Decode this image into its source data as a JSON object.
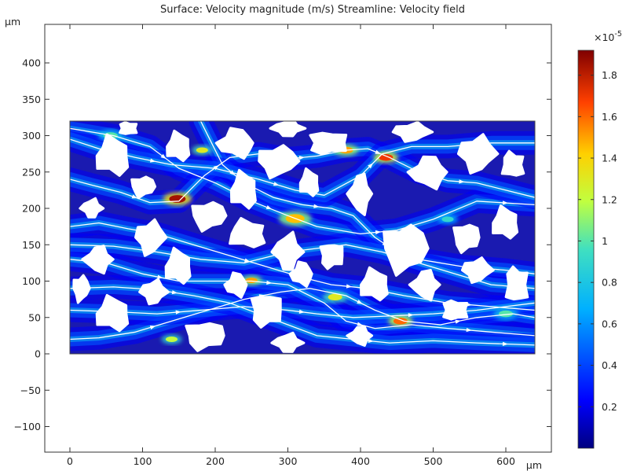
{
  "chart_data": {
    "type": "heatmap",
    "title": "Surface: Velocity magnitude (m/s)  Streamline: Velocity field",
    "xlabel": "µm",
    "ylabel": "µm",
    "xlim": [
      -35,
      670
    ],
    "ylim": [
      -135,
      460
    ],
    "x_ticks": [
      0,
      100,
      200,
      300,
      400,
      500,
      600
    ],
    "y_ticks": [
      -100,
      -50,
      0,
      50,
      100,
      150,
      200,
      250,
      300,
      350,
      400
    ],
    "domain": {
      "x": [
        0,
        640
      ],
      "y": [
        0,
        320
      ]
    },
    "colorbar": {
      "exponent_label": "×10",
      "exponent_power": "-5",
      "range": [
        0,
        1.92
      ],
      "ticks": [
        "0.2",
        "0.4",
        "0.6",
        "0.8",
        "1",
        "1.2",
        "1.4",
        "1.6",
        "1.8"
      ],
      "colormap": "rainbow"
    },
    "channels": [
      [
        [
          0,
          310
        ],
        [
          60,
          300
        ],
        [
          110,
          285
        ],
        [
          150,
          255
        ],
        [
          200,
          235
        ],
        [
          250,
          210
        ],
        [
          300,
          190
        ],
        [
          340,
          175
        ],
        [
          400,
          165
        ],
        [
          450,
          170
        ],
        [
          500,
          185
        ],
        [
          560,
          210
        ],
        [
          640,
          205
        ]
      ],
      [
        [
          0,
          175
        ],
        [
          40,
          180
        ],
        [
          80,
          172
        ],
        [
          120,
          165
        ],
        [
          170,
          150
        ],
        [
          220,
          135
        ],
        [
          270,
          120
        ],
        [
          320,
          105
        ],
        [
          360,
          95
        ],
        [
          410,
          90
        ],
        [
          460,
          80
        ],
        [
          520,
          70
        ],
        [
          580,
          65
        ],
        [
          640,
          60
        ]
      ],
      [
        [
          0,
          20
        ],
        [
          40,
          22
        ],
        [
          90,
          30
        ],
        [
          140,
          45
        ],
        [
          190,
          60
        ],
        [
          240,
          75
        ],
        [
          290,
          85
        ],
        [
          330,
          90
        ],
        [
          380,
          80
        ],
        [
          420,
          60
        ],
        [
          460,
          45
        ],
        [
          510,
          40
        ],
        [
          560,
          50
        ],
        [
          610,
          55
        ],
        [
          640,
          50
        ]
      ],
      [
        [
          0,
          240
        ],
        [
          30,
          232
        ],
        [
          70,
          222
        ],
        [
          110,
          208
        ],
        [
          150,
          210
        ],
        [
          185,
          245
        ],
        [
          220,
          270
        ],
        [
          260,
          275
        ],
        [
          300,
          268
        ],
        [
          340,
          272
        ],
        [
          380,
          280
        ],
        [
          410,
          282
        ],
        [
          440,
          270
        ],
        [
          480,
          250
        ],
        [
          520,
          238
        ],
        [
          560,
          235
        ],
        [
          600,
          225
        ],
        [
          640,
          215
        ]
      ],
      [
        [
          0,
          130
        ],
        [
          50,
          125
        ],
        [
          100,
          110
        ],
        [
          150,
          100
        ],
        [
          200,
          100
        ],
        [
          250,
          100
        ],
        [
          300,
          95
        ],
        [
          350,
          70
        ],
        [
          380,
          45
        ],
        [
          420,
          35
        ],
        [
          470,
          40
        ],
        [
          520,
          35
        ],
        [
          580,
          30
        ],
        [
          640,
          25
        ]
      ],
      [
        [
          180,
          320
        ],
        [
          195,
          290
        ],
        [
          210,
          260
        ],
        [
          240,
          235
        ],
        [
          280,
          215
        ],
        [
          320,
          205
        ],
        [
          360,
          200
        ],
        [
          390,
          190
        ],
        [
          420,
          160
        ],
        [
          450,
          140
        ],
        [
          480,
          130
        ],
        [
          540,
          120
        ],
        [
          600,
          115
        ],
        [
          640,
          110
        ]
      ],
      [
        [
          0,
          60
        ],
        [
          60,
          58
        ],
        [
          120,
          55
        ],
        [
          180,
          60
        ],
        [
          240,
          65
        ],
        [
          300,
          60
        ],
        [
          340,
          55
        ],
        [
          390,
          50
        ],
        [
          440,
          52
        ],
        [
          500,
          55
        ],
        [
          560,
          60
        ],
        [
          640,
          70
        ]
      ],
      [
        [
          0,
          295
        ],
        [
          40,
          282
        ],
        [
          90,
          270
        ],
        [
          140,
          260
        ],
        [
          200,
          255
        ],
        [
          260,
          240
        ],
        [
          310,
          225
        ],
        [
          350,
          218
        ],
        [
          400,
          245
        ],
        [
          430,
          275
        ],
        [
          470,
          285
        ],
        [
          520,
          285
        ],
        [
          580,
          290
        ],
        [
          640,
          290
        ]
      ],
      [
        [
          0,
          150
        ],
        [
          60,
          148
        ],
        [
          120,
          140
        ],
        [
          180,
          130
        ],
        [
          240,
          125
        ],
        [
          300,
          140
        ],
        [
          340,
          145
        ],
        [
          380,
          150
        ],
        [
          430,
          140
        ],
        [
          480,
          125
        ],
        [
          530,
          110
        ],
        [
          580,
          95
        ],
        [
          640,
          90
        ]
      ],
      [
        [
          0,
          90
        ],
        [
          60,
          92
        ],
        [
          120,
          88
        ],
        [
          170,
          80
        ],
        [
          220,
          70
        ],
        [
          260,
          55
        ],
        [
          300,
          40
        ],
        [
          340,
          25
        ],
        [
          390,
          20
        ],
        [
          440,
          15
        ],
        [
          500,
          18
        ],
        [
          560,
          15
        ],
        [
          640,
          12
        ]
      ]
    ],
    "hotspots": [
      {
        "x": 148,
        "y": 213,
        "v": 1.85,
        "r": 14
      },
      {
        "x": 182,
        "y": 280,
        "v": 1.3,
        "r": 10
      },
      {
        "x": 310,
        "y": 186,
        "v": 1.45,
        "r": 16
      },
      {
        "x": 380,
        "y": 280,
        "v": 1.5,
        "r": 12
      },
      {
        "x": 435,
        "y": 270,
        "v": 1.7,
        "r": 12
      },
      {
        "x": 250,
        "y": 101,
        "v": 1.5,
        "r": 10
      },
      {
        "x": 365,
        "y": 78,
        "v": 1.3,
        "r": 12
      },
      {
        "x": 455,
        "y": 45,
        "v": 1.6,
        "r": 12
      },
      {
        "x": 56,
        "y": 300,
        "v": 1.0,
        "r": 12
      },
      {
        "x": 140,
        "y": 20,
        "v": 1.2,
        "r": 10
      },
      {
        "x": 600,
        "y": 55,
        "v": 1.0,
        "r": 12
      },
      {
        "x": 520,
        "y": 185,
        "v": 0.9,
        "r": 10
      }
    ],
    "grains": [
      [
        60,
        272,
        28,
        30
      ],
      [
        100,
        230,
        18,
        16
      ],
      [
        30,
        200,
        16,
        14
      ],
      [
        150,
        285,
        20,
        22
      ],
      [
        230,
        290,
        30,
        22
      ],
      [
        240,
        225,
        22,
        28
      ],
      [
        285,
        265,
        30,
        24
      ],
      [
        330,
        235,
        16,
        20
      ],
      [
        355,
        290,
        30,
        18
      ],
      [
        400,
        220,
        18,
        30
      ],
      [
        470,
        305,
        28,
        14
      ],
      [
        495,
        250,
        30,
        24
      ],
      [
        560,
        275,
        28,
        28
      ],
      [
        610,
        260,
        18,
        20
      ],
      [
        600,
        180,
        22,
        24
      ],
      [
        40,
        130,
        22,
        20
      ],
      [
        110,
        160,
        22,
        26
      ],
      [
        190,
        190,
        26,
        22
      ],
      [
        245,
        165,
        30,
        22
      ],
      [
        300,
        140,
        22,
        28
      ],
      [
        360,
        135,
        18,
        20
      ],
      [
        460,
        145,
        34,
        38
      ],
      [
        545,
        160,
        20,
        22
      ],
      [
        150,
        120,
        22,
        26
      ],
      [
        230,
        95,
        18,
        18
      ],
      [
        320,
        110,
        18,
        18
      ],
      [
        60,
        55,
        28,
        26
      ],
      [
        115,
        85,
        20,
        18
      ],
      [
        185,
        25,
        30,
        22
      ],
      [
        270,
        60,
        24,
        26
      ],
      [
        300,
        15,
        22,
        14
      ],
      [
        420,
        95,
        24,
        24
      ],
      [
        490,
        95,
        22,
        22
      ],
      [
        560,
        115,
        22,
        18
      ],
      [
        530,
        60,
        20,
        16
      ],
      [
        615,
        95,
        18,
        28
      ],
      [
        400,
        25,
        18,
        14
      ],
      [
        15,
        90,
        12,
        20
      ],
      [
        80,
        310,
        14,
        10
      ],
      [
        300,
        310,
        24,
        12
      ]
    ]
  }
}
